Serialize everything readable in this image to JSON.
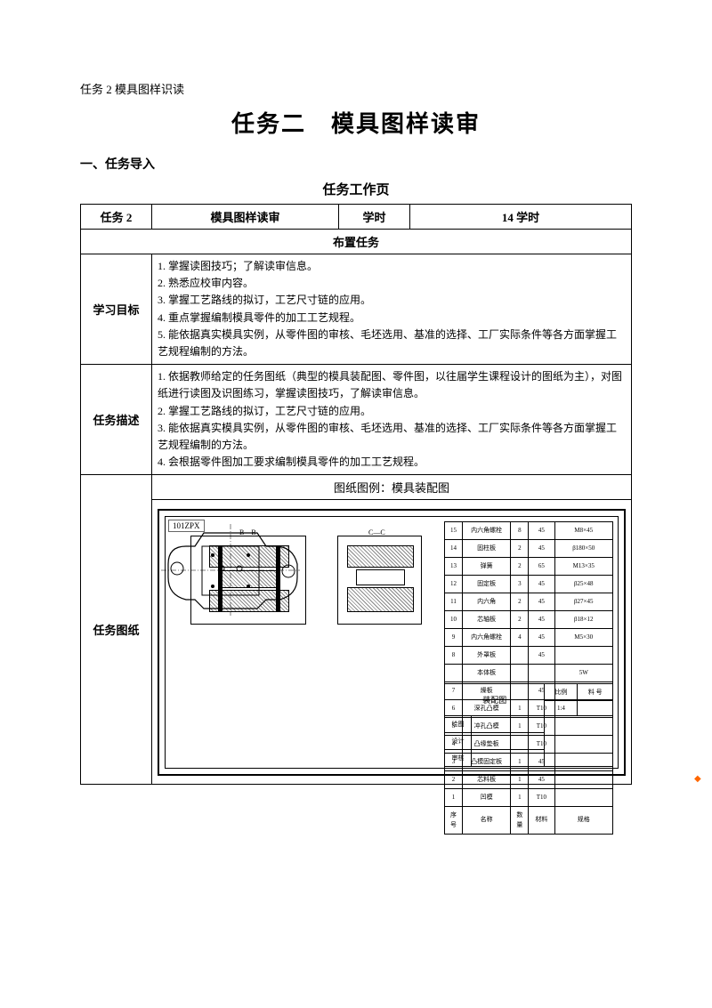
{
  "header": {
    "small": "任务 2 模具图样识读",
    "title": "任务二　模具图样读审",
    "section": "一、任务导入",
    "subtitle": "任务工作页"
  },
  "row1": {
    "taskNum": "任务 2",
    "taskName": "模具图样读审",
    "hoursLabel": "学时",
    "hours": "14 学时"
  },
  "assign": "布置任务",
  "goals": {
    "label": "学习目标",
    "text": "1. 掌握读图技巧；了解读审信息。\n2. 熟悉应校审内容。\n3. 掌握工艺路线的拟订，工艺尺寸链的应用。\n4.  重点掌握编制模具零件的加工工艺规程。\n5.  能依据真实模具实例，从零件图的审核、毛坯选用、基准的选择、工厂实际条件等各方面掌握工艺规程编制的方法。"
  },
  "desc": {
    "label": "任务描述",
    "text": "1.  依据教师给定的任务图纸（典型的模具装配图、零件图，以往届学生课程设计的图纸为主），对图纸进行读图及识图练习，掌握读图技巧，了解读审信息。\n2.  掌握工艺路线的拟订，工艺尺寸链的应用。\n3.  能依据真实模具实例，从零件图的审核、毛坯选用、基准的选择、工厂实际条件等各方面掌握工艺规程编制的方法。\n4.  会根据零件图加工要求编制模具零件的加工工艺规程。"
  },
  "drawing": {
    "label": "任务图纸",
    "caption": "图纸图例：模具装配图",
    "frameLabel": "101ZPX",
    "sectionAB": "B—B",
    "sectionCC": "C—C"
  },
  "parts": [
    {
      "n": "15",
      "name": "内六角螺栓",
      "q": "8",
      "m": "45",
      "s": "M8×45"
    },
    {
      "n": "14",
      "name": "固柱板",
      "q": "2",
      "m": "45",
      "s": "β180×50"
    },
    {
      "n": "13",
      "name": "弹簧",
      "q": "2",
      "m": "65",
      "s": "M13×35"
    },
    {
      "n": "12",
      "name": "固定板",
      "q": "3",
      "m": "45",
      "s": "β25×48"
    },
    {
      "n": "11",
      "name": "内六角",
      "q": "2",
      "m": "45",
      "s": "β27×45"
    },
    {
      "n": "10",
      "name": "芯轴板",
      "q": "2",
      "m": "45",
      "s": "β18×12"
    },
    {
      "n": "9",
      "name": "内六角螺栓",
      "q": "4",
      "m": "45",
      "s": "M5×30"
    },
    {
      "n": "8",
      "name": "外罩板",
      "q": "",
      "m": "45",
      "s": ""
    },
    {
      "n": "",
      "name": "本体板",
      "q": "",
      "m": "",
      "s": "5W"
    },
    {
      "n": "7",
      "name": "燥板",
      "q": "",
      "m": "45",
      "s": ""
    },
    {
      "n": "6",
      "name": "深孔凸模",
      "q": "1",
      "m": "T10",
      "s": ""
    },
    {
      "n": "5",
      "name": "冲孔凸模",
      "q": "1",
      "m": "T10",
      "s": ""
    },
    {
      "n": "4",
      "name": "凸缘垫板",
      "q": "",
      "m": "T10",
      "s": ""
    },
    {
      "n": "3",
      "name": "凸模固定板",
      "q": "1",
      "m": "45",
      "s": ""
    },
    {
      "n": "2",
      "name": "芯料板",
      "q": "1",
      "m": "45",
      "s": ""
    },
    {
      "n": "1",
      "name": "凹模",
      "q": "1",
      "m": "T10",
      "s": ""
    }
  ],
  "partsHeader": {
    "n": "序号",
    "name": "名称",
    "q": "数量",
    "m": "材料",
    "s": "规格"
  },
  "titleBlock": {
    "name": "装配图",
    "scale": "比例",
    "scaleVal": "1:4",
    "matNo": "料 号",
    "draw": "绘图",
    "check": "设计",
    "appr": "审核"
  }
}
